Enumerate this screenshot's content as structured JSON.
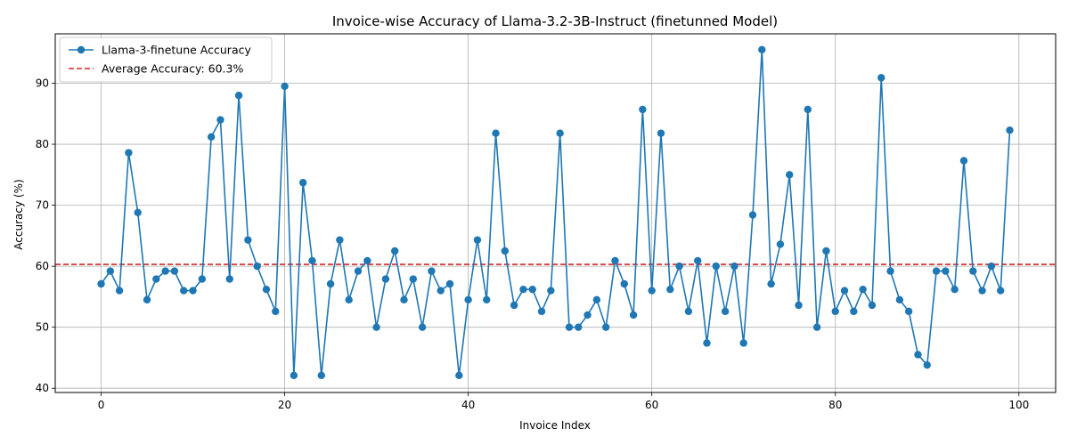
{
  "chart_data": {
    "type": "line",
    "title": "Invoice-wise Accuracy of Llama-3.2-3B-Instruct (finetunned Model)",
    "xlabel": "Invoice Index",
    "ylabel": "Accuracy (%)",
    "xlim": [
      -5,
      104
    ],
    "ylim": [
      39.3,
      98.1
    ],
    "xticks": [
      0,
      20,
      40,
      60,
      80,
      100
    ],
    "yticks": [
      40,
      50,
      60,
      70,
      80,
      90
    ],
    "grid": true,
    "legend_position": "top-left",
    "series": [
      {
        "name": "Llama-3-finetune Accuracy",
        "color": "#1f77b4",
        "marker": "circle",
        "x": [
          0,
          1,
          2,
          3,
          4,
          5,
          6,
          7,
          8,
          9,
          10,
          11,
          12,
          13,
          14,
          15,
          16,
          17,
          18,
          19,
          20,
          21,
          22,
          23,
          24,
          25,
          26,
          27,
          28,
          29,
          30,
          31,
          32,
          33,
          34,
          35,
          36,
          37,
          38,
          39,
          40,
          41,
          42,
          43,
          44,
          45,
          46,
          47,
          48,
          49,
          50,
          51,
          52,
          53,
          54,
          55,
          56,
          57,
          58,
          59,
          60,
          61,
          62,
          63,
          64,
          65,
          66,
          67,
          68,
          69,
          70,
          71,
          72,
          73,
          74,
          75,
          76,
          77,
          78,
          79,
          80,
          81,
          82,
          83,
          84,
          85,
          86,
          87,
          88,
          89,
          90,
          91,
          92,
          93,
          94,
          95,
          96,
          97,
          98,
          99
        ],
        "values": [
          57.1,
          59.2,
          56.0,
          78.6,
          68.8,
          54.5,
          57.9,
          59.2,
          59.2,
          56.0,
          56.0,
          57.9,
          81.2,
          84.0,
          57.9,
          88.0,
          64.3,
          60.0,
          56.2,
          52.6,
          89.5,
          42.1,
          73.7,
          60.9,
          42.1,
          57.1,
          64.3,
          54.5,
          59.2,
          60.9,
          50.0,
          57.9,
          62.5,
          54.5,
          57.9,
          50.0,
          59.2,
          56.0,
          57.1,
          42.1,
          54.5,
          64.3,
          54.5,
          81.8,
          62.5,
          53.6,
          56.2,
          56.2,
          52.6,
          56.0,
          81.8,
          50.0,
          50.0,
          52.0,
          54.5,
          50.0,
          60.9,
          57.1,
          52.0,
          85.7,
          56.0,
          81.8,
          56.2,
          60.0,
          52.6,
          60.9,
          47.4,
          60.0,
          52.6,
          60.0,
          47.4,
          68.4,
          95.5,
          57.1,
          63.6,
          75.0,
          53.6,
          85.7,
          50.0,
          62.5,
          52.6,
          56.0,
          52.6,
          56.2,
          53.6,
          90.9,
          59.2,
          54.5,
          52.6,
          45.5,
          43.8,
          59.2,
          59.2,
          56.2,
          77.3,
          59.2,
          56.0,
          60.0,
          56.0,
          82.3
        ]
      },
      {
        "name": "Average Accuracy: 60.3%",
        "color": "#d62728",
        "style": "dashed",
        "value": 60.3
      }
    ]
  }
}
